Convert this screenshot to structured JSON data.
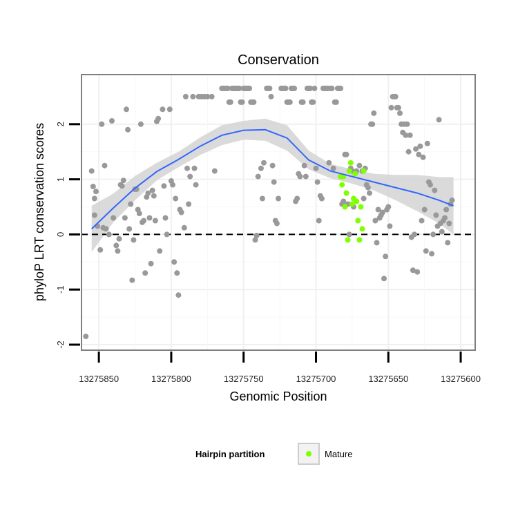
{
  "chart_data": {
    "type": "scatter",
    "title": "Conservation",
    "xlabel": "Genomic Position",
    "ylabel": "phyloP LRT conservation scores",
    "x_reversed": true,
    "xlim": [
      13275862,
      13275590
    ],
    "ylim": [
      -2.1,
      2.9
    ],
    "x_ticks": [
      13275850,
      13275800,
      13275750,
      13275700,
      13275650,
      13275600
    ],
    "x_tick_labels": [
      "13275850",
      "13275800",
      "13275750",
      "13275700",
      "13275650",
      "13275600"
    ],
    "y_ticks": [
      -2,
      -1,
      0,
      1,
      2
    ],
    "y_tick_labels": [
      "-2",
      "-1",
      "0",
      "1",
      "2"
    ],
    "grid": true,
    "reference_line": {
      "y": 0,
      "style": "dashed"
    },
    "colors": {
      "other": "#999999",
      "mature": "#7fff00",
      "smooth": "#3366ff",
      "ribbon": "#d3d3d3"
    },
    "legend": {
      "title": "Hairpin partition",
      "position": "bottom",
      "entries": [
        {
          "label": "Mature",
          "color": "#7fff00"
        }
      ]
    },
    "series": [
      {
        "group": "other",
        "points": [
          [
            13275855,
            1.15
          ],
          [
            13275854,
            0.87
          ],
          [
            13275853,
            0.65
          ],
          [
            13275852,
            0.78
          ],
          [
            13275853,
            0.35
          ],
          [
            13275851,
            0.15
          ],
          [
            13275849,
            -0.28
          ],
          [
            13275848,
            2.0
          ],
          [
            13275846,
            1.25
          ],
          [
            13275845,
            0.1
          ],
          [
            13275847,
            0.12
          ],
          [
            13275843,
            0.0
          ],
          [
            13275841,
            2.06
          ],
          [
            13275840,
            0.3
          ],
          [
            13275838,
            -0.2
          ],
          [
            13275837,
            -0.3
          ],
          [
            13275836,
            -0.08
          ],
          [
            13275835,
            0.9
          ],
          [
            13275834,
            0.88
          ],
          [
            13275833,
            0.98
          ],
          [
            13275832,
            0.3
          ],
          [
            13275831,
            2.27
          ],
          [
            13275830,
            1.9
          ],
          [
            13275829,
            0.1
          ],
          [
            13275828,
            0.55
          ],
          [
            13275827,
            -0.83
          ],
          [
            13275826,
            -0.1
          ],
          [
            13275825,
            0.82
          ],
          [
            13275824,
            0.82
          ],
          [
            13275823,
            0.45
          ],
          [
            13275822,
            0.38
          ],
          [
            13275821,
            2.0
          ],
          [
            13275820,
            0.22
          ],
          [
            13275819,
            0.25
          ],
          [
            13275818,
            -0.7
          ],
          [
            13275817,
            0.68
          ],
          [
            13275816,
            0.75
          ],
          [
            13275815,
            0.3
          ],
          [
            13275814,
            -0.53
          ],
          [
            13275813,
            0.8
          ],
          [
            13275812,
            0.7
          ],
          [
            13275811,
            0.25
          ],
          [
            13275810,
            2.05
          ],
          [
            13275809,
            2.1
          ],
          [
            13275808,
            -0.3
          ],
          [
            13275806,
            2.27
          ],
          [
            13275805,
            0.88
          ],
          [
            13275804,
            0.3
          ],
          [
            13275803,
            0.0
          ],
          [
            13275801,
            2.27
          ],
          [
            13275800,
            0.97
          ],
          [
            13275799,
            0.9
          ],
          [
            13275798,
            -0.5
          ],
          [
            13275797,
            0.65
          ],
          [
            13275796,
            -0.7
          ],
          [
            13275795,
            -1.1
          ],
          [
            13275794,
            0.45
          ],
          [
            13275793,
            0.4
          ],
          [
            13275791,
            0.12
          ],
          [
            13275790,
            2.5
          ],
          [
            13275789,
            1.2
          ],
          [
            13275788,
            0.55
          ],
          [
            13275787,
            1.05
          ],
          [
            13275785,
            2.5
          ],
          [
            13275784,
            1.2
          ],
          [
            13275783,
            0.9
          ],
          [
            13275781,
            2.5
          ],
          [
            13275779,
            2.5
          ],
          [
            13275777,
            2.5
          ],
          [
            13275775,
            2.5
          ],
          [
            13275772,
            2.5
          ],
          [
            13275770,
            1.15
          ],
          [
            13275765,
            2.65
          ],
          [
            13275764,
            2.65
          ],
          [
            13275763,
            2.65
          ],
          [
            13275762,
            2.65
          ],
          [
            13275761,
            2.65
          ],
          [
            13275760,
            2.4
          ],
          [
            13275759,
            2.4
          ],
          [
            13275758,
            2.65
          ],
          [
            13275757,
            2.65
          ],
          [
            13275756,
            2.65
          ],
          [
            13275755,
            2.65
          ],
          [
            13275754,
            2.65
          ],
          [
            13275753,
            2.65
          ],
          [
            13275752,
            2.4
          ],
          [
            13275751,
            2.4
          ],
          [
            13275750,
            2.65
          ],
          [
            13275749,
            2.65
          ],
          [
            13275748,
            2.65
          ],
          [
            13275747,
            2.65
          ],
          [
            13275746,
            2.65
          ],
          [
            13275745,
            2.4
          ],
          [
            13275744,
            2.4
          ],
          [
            13275743,
            2.4
          ],
          [
            13275742,
            -0.1
          ],
          [
            13275741,
            -0.02
          ],
          [
            13275740,
            1.05
          ],
          [
            13275738,
            1.2
          ],
          [
            13275737,
            0.65
          ],
          [
            13275736,
            1.3
          ],
          [
            13275734,
            2.65
          ],
          [
            13275733,
            2.65
          ],
          [
            13275732,
            2.65
          ],
          [
            13275731,
            2.5
          ],
          [
            13275730,
            1.25
          ],
          [
            13275729,
            0.95
          ],
          [
            13275728,
            0.25
          ],
          [
            13275727,
            0.2
          ],
          [
            13275726,
            0.65
          ],
          [
            13275724,
            2.65
          ],
          [
            13275723,
            2.65
          ],
          [
            13275722,
            2.65
          ],
          [
            13275721,
            2.65
          ],
          [
            13275720,
            2.4
          ],
          [
            13275719,
            2.4
          ],
          [
            13275718,
            2.4
          ],
          [
            13275717,
            2.65
          ],
          [
            13275716,
            2.65
          ],
          [
            13275715,
            2.65
          ],
          [
            13275714,
            0.6
          ],
          [
            13275713,
            0.65
          ],
          [
            13275712,
            1.1
          ],
          [
            13275711,
            1.05
          ],
          [
            13275710,
            2.4
          ],
          [
            13275709,
            2.4
          ],
          [
            13275708,
            1.25
          ],
          [
            13275707,
            1.05
          ],
          [
            13275706,
            2.65
          ],
          [
            13275705,
            2.65
          ],
          [
            13275704,
            2.65
          ],
          [
            13275703,
            2.4
          ],
          [
            13275702,
            2.4
          ],
          [
            13275701,
            2.65
          ],
          [
            13275700,
            1.2
          ],
          [
            13275699,
            0.95
          ],
          [
            13275698,
            0.25
          ],
          [
            13275697,
            0.7
          ],
          [
            13275696,
            0.65
          ],
          [
            13275695,
            2.65
          ],
          [
            13275694,
            2.65
          ],
          [
            13275693,
            2.65
          ],
          [
            13275692,
            2.65
          ],
          [
            13275691,
            1.3
          ],
          [
            13275690,
            2.65
          ],
          [
            13275689,
            2.65
          ],
          [
            13275688,
            1.2
          ],
          [
            13275687,
            2.4
          ],
          [
            13275686,
            2.4
          ],
          [
            13275685,
            2.65
          ],
          [
            13275684,
            2.65
          ],
          [
            13275683,
            2.65
          ],
          [
            13275682,
            0.55
          ],
          [
            13275681,
            0.6
          ],
          [
            13275680,
            1.45
          ],
          [
            13275679,
            1.45
          ],
          [
            13275678,
            0.55
          ],
          [
            13275677,
            0.0
          ],
          [
            13275676,
            1.2
          ],
          [
            13275675,
            1.15
          ],
          [
            13275674,
            0.5
          ],
          [
            13275672,
            1.15
          ],
          [
            13275670,
            1.25
          ],
          [
            13275668,
            1.15
          ],
          [
            13275667,
            0.65
          ],
          [
            13275666,
            1.2
          ],
          [
            13275665,
            0.9
          ],
          [
            13275664,
            0.85
          ],
          [
            13275663,
            0.75
          ],
          [
            13275662,
            2.0
          ],
          [
            13275661,
            2.0
          ],
          [
            13275660,
            2.2
          ],
          [
            13275659,
            0.25
          ],
          [
            13275658,
            -0.15
          ],
          [
            13275657,
            0.45
          ],
          [
            13275656,
            0.3
          ],
          [
            13275655,
            0.35
          ],
          [
            13275654,
            0.4
          ],
          [
            13275653,
            -0.8
          ],
          [
            13275652,
            -0.4
          ],
          [
            13275651,
            0.45
          ],
          [
            13275650,
            0.5
          ],
          [
            13275649,
            0.15
          ],
          [
            13275648,
            2.3
          ],
          [
            13275647,
            2.5
          ],
          [
            13275646,
            2.5
          ],
          [
            13275645,
            2.5
          ],
          [
            13275644,
            2.3
          ],
          [
            13275643,
            2.3
          ],
          [
            13275642,
            2.2
          ],
          [
            13275641,
            2.0
          ],
          [
            13275640,
            1.85
          ],
          [
            13275639,
            2.0
          ],
          [
            13275638,
            1.8
          ],
          [
            13275637,
            2.0
          ],
          [
            13275636,
            1.5
          ],
          [
            13275635,
            1.8
          ],
          [
            13275634,
            -0.05
          ],
          [
            13275633,
            -0.65
          ],
          [
            13275632,
            0.0
          ],
          [
            13275631,
            1.55
          ],
          [
            13275630,
            -0.68
          ],
          [
            13275629,
            1.45
          ],
          [
            13275628,
            1.6
          ],
          [
            13275627,
            0.25
          ],
          [
            13275626,
            1.4
          ],
          [
            13275625,
            0.45
          ],
          [
            13275624,
            -0.3
          ],
          [
            13275623,
            1.65
          ],
          [
            13275622,
            0.95
          ],
          [
            13275621,
            0.9
          ],
          [
            13275620,
            -0.35
          ],
          [
            13275619,
            0.0
          ],
          [
            13275618,
            0.8
          ],
          [
            13275617,
            0.35
          ],
          [
            13275616,
            0.15
          ],
          [
            13275615,
            2.08
          ],
          [
            13275614,
            0.2
          ],
          [
            13275613,
            0.05
          ],
          [
            13275612,
            0.25
          ],
          [
            13275611,
            0.3
          ],
          [
            13275610,
            0.45
          ],
          [
            13275609,
            -0.15
          ],
          [
            13275608,
            0.2
          ],
          [
            13275607,
            0.55
          ],
          [
            13275606,
            0.62
          ],
          [
            13275859,
            -1.85
          ]
        ]
      },
      {
        "group": "Mature",
        "points": [
          [
            13275683,
            1.05
          ],
          [
            13275682,
            0.9
          ],
          [
            13275681,
            1.05
          ],
          [
            13275680,
            0.5
          ],
          [
            13275679,
            0.75
          ],
          [
            13275678,
            -0.1
          ],
          [
            13275677,
            1.15
          ],
          [
            13275676,
            1.3
          ],
          [
            13275675,
            0.55
          ],
          [
            13275674,
            0.65
          ],
          [
            13275673,
            1.1
          ],
          [
            13275672,
            0.6
          ],
          [
            13275671,
            0.25
          ],
          [
            13275670,
            -0.1
          ],
          [
            13275669,
            0.5
          ],
          [
            13275668,
            0.1
          ],
          [
            13275667,
            1.15
          ]
        ]
      }
    ],
    "smooth": {
      "x": [
        13275855,
        13275840,
        13275825,
        13275810,
        13275795,
        13275780,
        13275765,
        13275750,
        13275735,
        13275720,
        13275705,
        13275690,
        13275675,
        13275660,
        13275645,
        13275630,
        13275615,
        13275605
      ],
      "y": [
        0.1,
        0.48,
        0.84,
        1.14,
        1.36,
        1.6,
        1.8,
        1.89,
        1.9,
        1.75,
        1.35,
        1.15,
        1.05,
        0.95,
        0.85,
        0.75,
        0.62,
        0.52
      ],
      "lower": [
        -0.32,
        0.22,
        0.62,
        0.98,
        1.22,
        1.44,
        1.62,
        1.72,
        1.7,
        1.52,
        1.18,
        1.02,
        0.92,
        0.8,
        0.62,
        0.42,
        0.2,
        0.0
      ],
      "upper": [
        0.52,
        0.74,
        1.06,
        1.3,
        1.5,
        1.76,
        1.98,
        2.06,
        2.1,
        1.98,
        1.52,
        1.28,
        1.18,
        1.1,
        1.08,
        1.08,
        1.04,
        1.04
      ]
    }
  }
}
